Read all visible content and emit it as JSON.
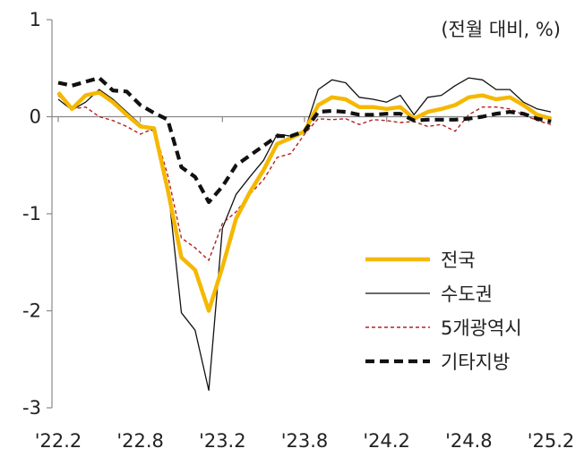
{
  "chart_data": {
    "type": "line",
    "unit_note": "(전월 대비, %)",
    "ylim": [
      -3,
      1
    ],
    "y_ticks": [
      "1",
      "0",
      "-1",
      "-2",
      "-3"
    ],
    "y_tick_values": [
      1,
      0,
      -1,
      -2,
      -3
    ],
    "x_tick_labels": [
      "'22.2",
      "'22.8",
      "'23.2",
      "'23.8",
      "'24.2",
      "'24.8",
      "'25.2"
    ],
    "x_tick_index": [
      0,
      6,
      12,
      18,
      24,
      30,
      36
    ],
    "x": [
      "'22.2",
      "'22.3",
      "'22.4",
      "'22.5",
      "'22.6",
      "'22.7",
      "'22.8",
      "'22.9",
      "'22.10",
      "'22.11",
      "'22.12",
      "'23.1",
      "'23.2",
      "'23.3",
      "'23.4",
      "'23.5",
      "'23.6",
      "'23.7",
      "'23.8",
      "'23.9",
      "'23.10",
      "'23.11",
      "'23.12",
      "'24.1",
      "'24.2",
      "'24.3",
      "'24.4",
      "'24.5",
      "'24.6",
      "'24.7",
      "'24.8",
      "'24.9",
      "'24.10",
      "'24.11",
      "'24.12",
      "'25.1",
      "'25.2"
    ],
    "grid": false,
    "legend_position": "lower-right",
    "series": [
      {
        "name": "전국",
        "color": "#f5b800",
        "style": "solid-thick",
        "values": [
          0.25,
          0.08,
          0.22,
          0.25,
          0.15,
          0.02,
          -0.1,
          -0.12,
          -0.75,
          -1.45,
          -1.58,
          -2.0,
          -1.55,
          -1.05,
          -0.78,
          -0.55,
          -0.28,
          -0.22,
          -0.15,
          0.12,
          0.2,
          0.18,
          0.1,
          0.1,
          0.08,
          0.1,
          -0.02,
          0.05,
          0.08,
          0.12,
          0.2,
          0.22,
          0.18,
          0.2,
          0.12,
          0.02,
          -0.02
        ]
      },
      {
        "name": "수도권",
        "color": "#111111",
        "style": "solid-thin",
        "values": [
          0.18,
          0.07,
          0.15,
          0.28,
          0.18,
          0.05,
          -0.08,
          -0.15,
          -0.7,
          -2.02,
          -2.2,
          -2.82,
          -1.15,
          -0.8,
          -0.62,
          -0.45,
          -0.18,
          -0.2,
          -0.15,
          0.28,
          0.38,
          0.35,
          0.2,
          0.18,
          0.15,
          0.22,
          0.02,
          0.2,
          0.22,
          0.32,
          0.4,
          0.38,
          0.28,
          0.28,
          0.15,
          0.08,
          0.05
        ]
      },
      {
        "name": "5개광역시",
        "color": "#b22222",
        "style": "dashed",
        "values": [
          0.22,
          0.08,
          0.1,
          0.0,
          -0.04,
          -0.1,
          -0.18,
          -0.12,
          -0.6,
          -1.25,
          -1.35,
          -1.48,
          -1.1,
          -0.98,
          -0.8,
          -0.65,
          -0.42,
          -0.38,
          -0.18,
          -0.02,
          -0.03,
          -0.02,
          -0.08,
          -0.03,
          -0.04,
          -0.06,
          -0.05,
          -0.1,
          -0.08,
          -0.15,
          0.02,
          0.1,
          0.1,
          0.08,
          0.02,
          -0.04,
          -0.08
        ]
      },
      {
        "name": "기타지방",
        "color": "#111111",
        "style": "bold-dashed",
        "values": [
          0.35,
          0.32,
          0.36,
          0.4,
          0.27,
          0.26,
          0.12,
          0.04,
          -0.03,
          -0.52,
          -0.62,
          -0.88,
          -0.72,
          -0.5,
          -0.4,
          -0.3,
          -0.2,
          -0.2,
          -0.15,
          0.05,
          0.06,
          0.05,
          0.02,
          0.02,
          0.03,
          0.03,
          -0.04,
          -0.03,
          -0.03,
          -0.03,
          -0.02,
          0.0,
          0.03,
          0.05,
          0.03,
          -0.02,
          -0.05
        ]
      }
    ]
  }
}
